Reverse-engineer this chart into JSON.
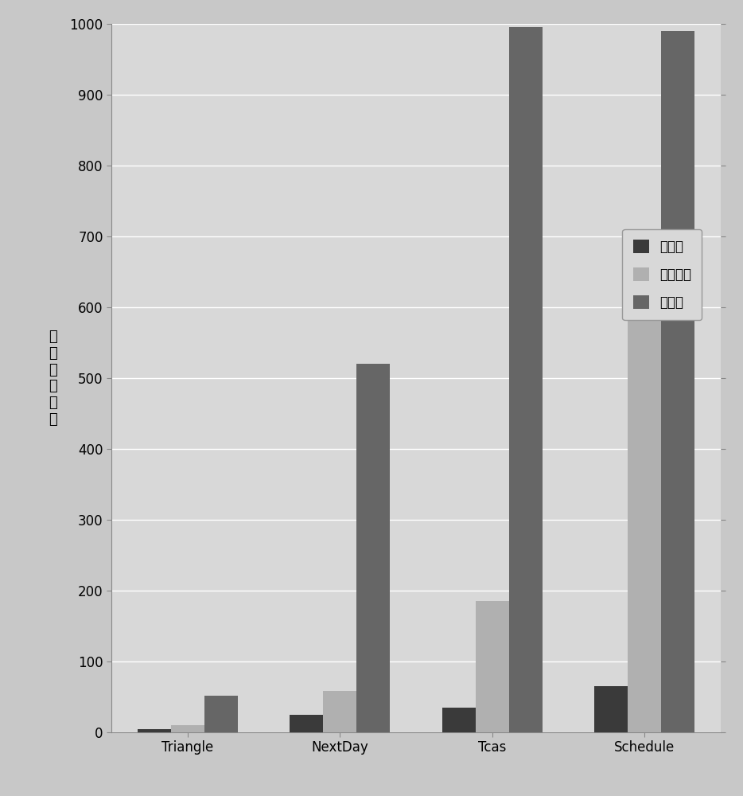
{
  "categories": [
    "Triangle",
    "NextDay",
    "Tcas",
    "Schedule"
  ],
  "series": {
    "本发明": [
      5,
      25,
      35,
      65
    ],
    "遗传算法": [
      10,
      58,
      185,
      665
    ],
    "随机法": [
      52,
      520,
      995,
      990
    ]
  },
  "series_colors": {
    "本发明": "#3a3a3a",
    "遗传算法": "#b0b0b0",
    "随机法": "#666666"
  },
  "legend_labels": [
    "本发明",
    "遗传算法",
    "随机法"
  ],
  "ylabel": "迭代次数均值",
  "ylim": [
    0,
    1000
  ],
  "yticks": [
    0,
    100,
    200,
    300,
    400,
    500,
    600,
    700,
    800,
    900,
    1000
  ],
  "background_color": "#c8c8c8",
  "plot_background_color": "#d8d8d8",
  "grid_color": "#ffffff",
  "bar_width": 0.22,
  "axis_fontsize": 13,
  "tick_fontsize": 12,
  "legend_fontsize": 12
}
